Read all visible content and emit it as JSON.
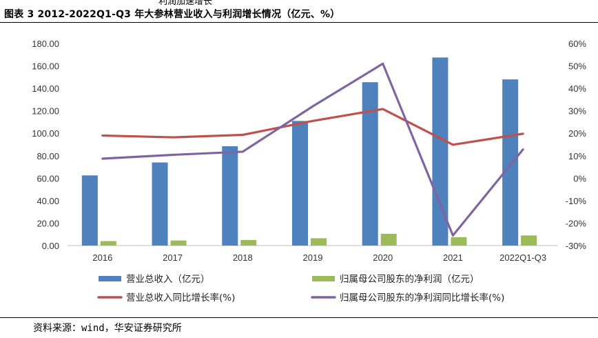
{
  "header": {
    "clipped_text": "利润加速增长",
    "figure_title": "图表 3 2012-2022Q1-Q3 年大参林营业收入与利润增长情况（亿元、%）"
  },
  "footer": {
    "source": "资料来源：wind，华安证券研究所"
  },
  "chart_data": {
    "type": "bar+line",
    "categories": [
      "2016",
      "2017",
      "2018",
      "2019",
      "2020",
      "2021",
      "2022Q1-Q3"
    ],
    "series": [
      {
        "name": "营业总收入（亿元）",
        "kind": "bar",
        "axis": "left",
        "color": "#4f81bd",
        "values": [
          62.5,
          74.0,
          88.5,
          111.0,
          145.5,
          167.5,
          148.0
        ]
      },
      {
        "name": "归属母公司股东的净利润（亿元）",
        "kind": "bar",
        "axis": "left",
        "color": "#9bbb59",
        "values": [
          4.0,
          4.5,
          5.0,
          6.5,
          10.5,
          7.5,
          9.0
        ]
      },
      {
        "name": "营业总收入同比增长率(%)",
        "kind": "line",
        "axis": "right",
        "color": "#c0504d",
        "values": [
          19.0,
          18.2,
          19.3,
          25.5,
          30.8,
          14.9,
          19.8
        ]
      },
      {
        "name": "归属母公司股东的净利润同比增长率(%)",
        "kind": "line",
        "axis": "right",
        "color": "#8064a2",
        "values": [
          8.7,
          10.4,
          11.8,
          32.0,
          51.0,
          -25.5,
          12.8
        ]
      }
    ],
    "y_left": {
      "min": 0,
      "max": 180,
      "step": 20,
      "tick_labels": [
        "0.00",
        "20.00",
        "40.00",
        "60.00",
        "80.00",
        "100.00",
        "120.00",
        "140.00",
        "160.00",
        "180.00"
      ]
    },
    "y_right": {
      "min": -30,
      "max": 60,
      "step": 10,
      "tick_labels": [
        "-30%",
        "-20%",
        "-10%",
        "0%",
        "10%",
        "20%",
        "30%",
        "40%",
        "50%",
        "60%"
      ]
    },
    "gridlines": false,
    "legend_position": "bottom"
  }
}
